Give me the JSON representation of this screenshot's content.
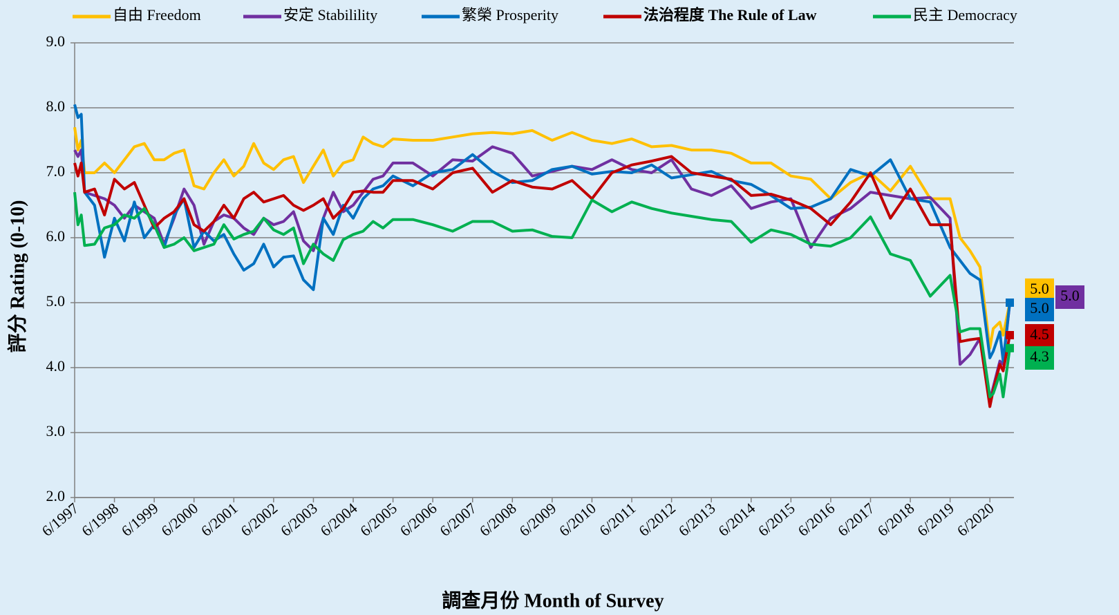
{
  "chart_data": {
    "type": "line",
    "x_label": "調查月份 Month of Survey",
    "y_label": "評分 Rating (0-10)",
    "x": [
      "6/1997",
      "7/1997",
      "8/1997",
      "9/1997",
      "12/1997",
      "3/1998",
      "6/1998",
      "9/1998",
      "12/1998",
      "3/1999",
      "6/1999",
      "9/1999",
      "12/1999",
      "3/2000",
      "6/2000",
      "9/2000",
      "12/2000",
      "3/2001",
      "6/2001",
      "9/2001",
      "12/2001",
      "3/2002",
      "6/2002",
      "9/2002",
      "12/2002",
      "3/2003",
      "6/2003",
      "9/2003",
      "12/2003",
      "3/2004",
      "6/2004",
      "9/2004",
      "12/2004",
      "3/2005",
      "6/2005",
      "12/2005",
      "6/2006",
      "12/2006",
      "6/2007",
      "12/2007",
      "6/2008",
      "12/2008",
      "6/2009",
      "12/2009",
      "6/2010",
      "12/2010",
      "6/2011",
      "12/2011",
      "6/2012",
      "12/2012",
      "6/2013",
      "12/2013",
      "6/2014",
      "12/2014",
      "6/2015",
      "12/2015",
      "6/2016",
      "12/2016",
      "6/2017",
      "12/2017",
      "6/2018",
      "12/2018",
      "6/2019",
      "9/2019",
      "12/2019",
      "3/2020",
      "6/2020",
      "7/2020",
      "9/2020",
      "10/2020",
      "12/2020"
    ],
    "xlim": [
      "6/1997",
      "12/2020"
    ],
    "xticks": [
      "6/1997",
      "6/1998",
      "6/1999",
      "6/2000",
      "6/2001",
      "6/2002",
      "6/2003",
      "6/2004",
      "6/2005",
      "6/2006",
      "6/2007",
      "6/2008",
      "6/2009",
      "6/2010",
      "6/2011",
      "6/2012",
      "6/2013",
      "6/2014",
      "6/2015",
      "6/2016",
      "6/2017",
      "6/2018",
      "6/2019",
      "6/2020"
    ],
    "ylim": [
      2,
      9
    ],
    "yticks": [
      {
        "value": 2,
        "label": "2.0"
      },
      {
        "value": 3,
        "label": "3.0"
      },
      {
        "value": 4,
        "label": "4.0"
      },
      {
        "value": 5,
        "label": "5.0"
      },
      {
        "value": 6,
        "label": "6.0"
      },
      {
        "value": 7,
        "label": "7.0"
      },
      {
        "value": 8,
        "label": "8.0"
      },
      {
        "value": 9,
        "label": "9.0"
      }
    ],
    "grid": true,
    "legend": "top",
    "series": [
      {
        "name": "自由 Freedom",
        "color": "#ffc000",
        "values": [
          7.7,
          7.35,
          7.5,
          7.0,
          7.0,
          7.15,
          7.0,
          7.2,
          7.4,
          7.45,
          7.2,
          7.2,
          7.3,
          7.35,
          6.8,
          6.75,
          7.0,
          7.2,
          6.95,
          7.1,
          7.45,
          7.15,
          7.05,
          7.2,
          7.25,
          6.85,
          7.1,
          7.35,
          6.95,
          7.15,
          7.2,
          7.55,
          7.45,
          7.4,
          7.52,
          7.5,
          7.5,
          7.55,
          7.6,
          7.62,
          7.6,
          7.65,
          7.5,
          7.62,
          7.5,
          7.45,
          7.52,
          7.4,
          7.42,
          7.35,
          7.35,
          7.3,
          7.15,
          7.15,
          6.95,
          6.9,
          6.6,
          6.85,
          7.0,
          6.72,
          7.1,
          6.6,
          6.6,
          6.0,
          5.8,
          5.55,
          4.3,
          4.6,
          4.7,
          4.5,
          5.0
        ],
        "value_labels": [
          null,
          null,
          null,
          null,
          null,
          null,
          null,
          null,
          null,
          null,
          null,
          null,
          null,
          null,
          null,
          null,
          null,
          null,
          null,
          null,
          null,
          null,
          null,
          null,
          null,
          null,
          null,
          null,
          null,
          null,
          null,
          null,
          null,
          null,
          null,
          null,
          null,
          null,
          null,
          null,
          null,
          null,
          null,
          null,
          null,
          null,
          null,
          null,
          null,
          null,
          null,
          null,
          null,
          null,
          null,
          null,
          null,
          null,
          null,
          null,
          null,
          null,
          null,
          null,
          null,
          null,
          null,
          null,
          null,
          null,
          "5.0"
        ]
      },
      {
        "name": "安定 Stabilility",
        "color": "#7030a0",
        "values": [
          7.35,
          7.25,
          7.35,
          6.7,
          6.65,
          6.6,
          6.5,
          6.3,
          6.5,
          6.4,
          6.3,
          5.9,
          6.3,
          6.75,
          6.5,
          5.9,
          6.25,
          6.35,
          6.3,
          6.15,
          6.05,
          6.3,
          6.2,
          6.25,
          6.4,
          5.95,
          5.8,
          6.3,
          6.7,
          6.4,
          6.5,
          6.7,
          6.9,
          6.95,
          7.15,
          7.15,
          6.95,
          7.2,
          7.18,
          7.4,
          7.3,
          6.95,
          7.02,
          7.1,
          7.05,
          7.2,
          7.05,
          7.0,
          7.2,
          6.75,
          6.65,
          6.8,
          6.45,
          6.55,
          6.6,
          5.85,
          6.3,
          6.45,
          6.7,
          6.65,
          6.6,
          6.62,
          6.3,
          4.05,
          4.2,
          4.45,
          3.5,
          3.7,
          4.1,
          4.05,
          5.0
        ],
        "value_labels": [
          null,
          null,
          null,
          null,
          null,
          null,
          null,
          null,
          null,
          null,
          null,
          null,
          null,
          null,
          null,
          null,
          null,
          null,
          null,
          null,
          null,
          null,
          null,
          null,
          null,
          null,
          null,
          null,
          null,
          null,
          null,
          null,
          null,
          null,
          null,
          null,
          null,
          null,
          null,
          null,
          null,
          null,
          null,
          null,
          null,
          null,
          null,
          null,
          null,
          null,
          null,
          null,
          null,
          null,
          null,
          null,
          null,
          null,
          null,
          null,
          null,
          null,
          null,
          null,
          null,
          null,
          null,
          null,
          null,
          null,
          "5.0"
        ]
      },
      {
        "name": "繁榮 Prosperity",
        "color": "#0070c0",
        "values": [
          8.05,
          7.85,
          7.9,
          6.7,
          6.5,
          5.7,
          6.3,
          5.95,
          6.55,
          6.0,
          6.2,
          5.85,
          6.35,
          6.6,
          5.85,
          6.1,
          5.95,
          6.05,
          5.75,
          5.5,
          5.6,
          5.9,
          5.55,
          5.7,
          5.72,
          5.35,
          5.2,
          6.3,
          6.05,
          6.5,
          6.3,
          6.6,
          6.75,
          6.8,
          6.95,
          6.8,
          7.0,
          7.05,
          7.28,
          7.02,
          6.85,
          6.88,
          7.05,
          7.1,
          6.98,
          7.02,
          7.0,
          7.12,
          6.92,
          6.97,
          7.02,
          6.88,
          6.82,
          6.65,
          6.45,
          6.47,
          6.6,
          7.05,
          6.95,
          7.2,
          6.6,
          6.55,
          5.85,
          5.65,
          5.45,
          5.35,
          4.15,
          4.25,
          4.55,
          4.1,
          5.0
        ],
        "value_labels": [
          null,
          null,
          null,
          null,
          null,
          null,
          null,
          null,
          null,
          null,
          null,
          null,
          null,
          null,
          null,
          null,
          null,
          null,
          null,
          null,
          null,
          null,
          null,
          null,
          null,
          null,
          null,
          null,
          null,
          null,
          null,
          null,
          null,
          null,
          null,
          null,
          null,
          null,
          null,
          null,
          null,
          null,
          null,
          null,
          null,
          null,
          null,
          null,
          null,
          null,
          null,
          null,
          null,
          null,
          null,
          null,
          null,
          null,
          null,
          null,
          null,
          null,
          null,
          null,
          null,
          null,
          null,
          null,
          null,
          null,
          "5.0"
        ]
      },
      {
        "name": "法治程度 The Rule of Law",
        "color": "#c00000",
        "values": [
          7.15,
          6.95,
          7.15,
          6.7,
          6.75,
          6.35,
          6.9,
          6.75,
          6.85,
          6.5,
          6.15,
          6.3,
          6.4,
          6.6,
          6.2,
          6.1,
          6.25,
          6.5,
          6.3,
          6.6,
          6.7,
          6.55,
          6.6,
          6.65,
          6.5,
          6.42,
          6.5,
          6.6,
          6.3,
          6.45,
          6.7,
          6.72,
          6.7,
          6.7,
          6.88,
          6.88,
          6.75,
          7.0,
          7.07,
          6.7,
          6.88,
          6.78,
          6.75,
          6.88,
          6.6,
          7.0,
          7.12,
          7.18,
          7.25,
          7.0,
          6.95,
          6.9,
          6.65,
          6.67,
          6.58,
          6.45,
          6.2,
          6.55,
          7.0,
          6.3,
          6.75,
          6.2,
          6.2,
          4.4,
          4.43,
          4.45,
          3.4,
          3.65,
          4.05,
          3.95,
          4.5
        ],
        "value_labels": [
          null,
          null,
          null,
          null,
          null,
          null,
          null,
          null,
          null,
          null,
          null,
          null,
          null,
          null,
          null,
          null,
          null,
          null,
          null,
          null,
          null,
          null,
          null,
          null,
          null,
          null,
          null,
          null,
          null,
          null,
          null,
          null,
          null,
          null,
          null,
          null,
          null,
          null,
          null,
          null,
          null,
          null,
          null,
          null,
          null,
          null,
          null,
          null,
          null,
          null,
          null,
          null,
          null,
          null,
          null,
          null,
          null,
          null,
          null,
          null,
          null,
          null,
          null,
          null,
          null,
          null,
          null,
          null,
          null,
          null,
          "4.5"
        ]
      },
      {
        "name": "民主 Democracy",
        "color": "#00b050",
        "values": [
          6.7,
          6.2,
          6.35,
          5.88,
          5.9,
          6.15,
          6.2,
          6.35,
          6.3,
          6.45,
          6.2,
          5.85,
          5.9,
          6.0,
          5.8,
          5.85,
          5.9,
          6.2,
          5.98,
          6.05,
          6.1,
          6.3,
          6.12,
          6.05,
          6.15,
          5.6,
          5.9,
          5.75,
          5.65,
          5.97,
          6.05,
          6.1,
          6.25,
          6.15,
          6.28,
          6.28,
          6.2,
          6.1,
          6.25,
          6.25,
          6.1,
          6.12,
          6.02,
          6.0,
          6.58,
          6.4,
          6.55,
          6.45,
          6.38,
          6.33,
          6.28,
          6.25,
          5.93,
          6.12,
          6.05,
          5.9,
          5.87,
          6.0,
          6.32,
          5.75,
          5.65,
          5.1,
          5.42,
          4.55,
          4.6,
          4.6,
          3.55,
          3.6,
          3.9,
          3.55,
          4.3
        ],
        "value_labels": [
          null,
          null,
          null,
          null,
          null,
          null,
          null,
          null,
          null,
          null,
          null,
          null,
          null,
          null,
          null,
          null,
          null,
          null,
          null,
          null,
          null,
          null,
          null,
          null,
          null,
          null,
          null,
          null,
          null,
          null,
          null,
          null,
          null,
          null,
          null,
          null,
          null,
          null,
          null,
          null,
          null,
          null,
          null,
          null,
          null,
          null,
          null,
          null,
          null,
          null,
          null,
          null,
          null,
          null,
          null,
          null,
          null,
          null,
          null,
          null,
          null,
          null,
          null,
          null,
          null,
          null,
          null,
          null,
          null,
          null,
          "4.3"
        ]
      }
    ]
  }
}
